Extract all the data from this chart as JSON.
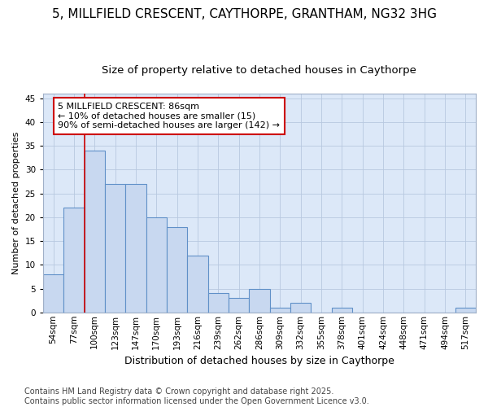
{
  "title1": "5, MILLFIELD CRESCENT, CAYTHORPE, GRANTHAM, NG32 3HG",
  "title2": "Size of property relative to detached houses in Caythorpe",
  "xlabel": "Distribution of detached houses by size in Caythorpe",
  "ylabel": "Number of detached properties",
  "categories": [
    "54sqm",
    "77sqm",
    "100sqm",
    "123sqm",
    "147sqm",
    "170sqm",
    "193sqm",
    "216sqm",
    "239sqm",
    "262sqm",
    "286sqm",
    "309sqm",
    "332sqm",
    "355sqm",
    "378sqm",
    "401sqm",
    "424sqm",
    "448sqm",
    "471sqm",
    "494sqm",
    "517sqm"
  ],
  "values": [
    8,
    22,
    34,
    27,
    27,
    20,
    18,
    12,
    4,
    3,
    5,
    1,
    2,
    0,
    1,
    0,
    0,
    0,
    0,
    0,
    1
  ],
  "bar_color": "#c8d8f0",
  "bar_edge_color": "#6090c8",
  "vline_x": 1.5,
  "vline_color": "#cc0000",
  "annotation_text": "5 MILLFIELD CRESCENT: 86sqm\n← 10% of detached houses are smaller (15)\n90% of semi-detached houses are larger (142) →",
  "annotation_box_color": "#ffffff",
  "annotation_box_edge": "#cc0000",
  "ylim": [
    0,
    46
  ],
  "yticks": [
    0,
    5,
    10,
    15,
    20,
    25,
    30,
    35,
    40,
    45
  ],
  "bg_color": "#dce8f8",
  "fig_bg_color": "#ffffff",
  "footer": "Contains HM Land Registry data © Crown copyright and database right 2025.\nContains public sector information licensed under the Open Government Licence v3.0.",
  "title1_fontsize": 11,
  "title2_fontsize": 9.5,
  "annotation_fontsize": 8,
  "footer_fontsize": 7,
  "ylabel_fontsize": 8,
  "xlabel_fontsize": 9,
  "tick_fontsize": 7.5
}
